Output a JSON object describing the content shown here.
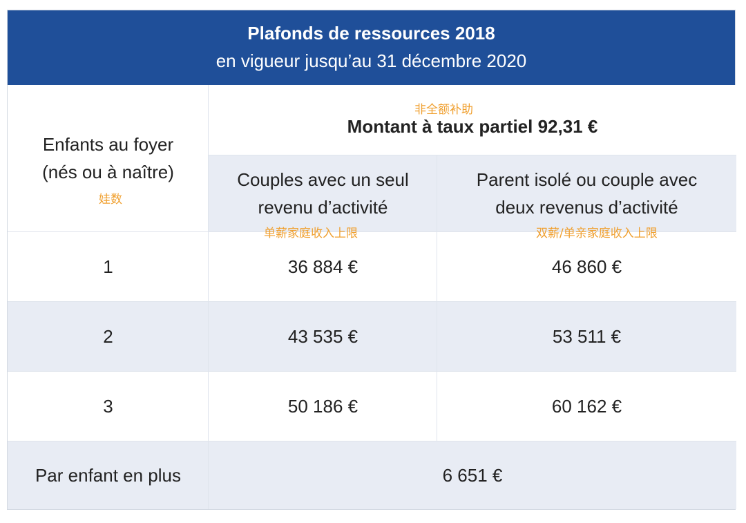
{
  "title": {
    "main": "Plafonds de ressources 2018",
    "sub": "en vigueur jusqu’au 31 décembre 2020"
  },
  "header": {
    "children_col": "Enfants au foyer (nés ou à naître)",
    "children_col_line1": "Enfants au foyer",
    "children_col_line2": "(nés ou à naître)",
    "amount": "Montant à taux partiel 92,31 €",
    "col1_line1": "Couples avec un seul",
    "col1_line2": "revenu d’activité",
    "col2_line1": "Parent isolé ou couple avec",
    "col2_line2": "deux revenus d’activité"
  },
  "annotations": {
    "amount": "非全额补助",
    "children": "娃数",
    "col1": "单薪家庭收入上限",
    "col2": "双薪/单亲家庭收入上限"
  },
  "rows": [
    {
      "children": "1",
      "single_income": "36 884 €",
      "dual_income": "46 860 €"
    },
    {
      "children": "2",
      "single_income": "43 535 €",
      "dual_income": "53 511 €"
    },
    {
      "children": "3",
      "single_income": "50 186 €",
      "dual_income": "60 162 €"
    }
  ],
  "footer": {
    "label": "Par enfant en plus",
    "value": "6 651 €"
  },
  "colors": {
    "header_bg": "#1f4f99",
    "stripe_bg": "#e8ecf4",
    "annotation": "#f0a030"
  }
}
